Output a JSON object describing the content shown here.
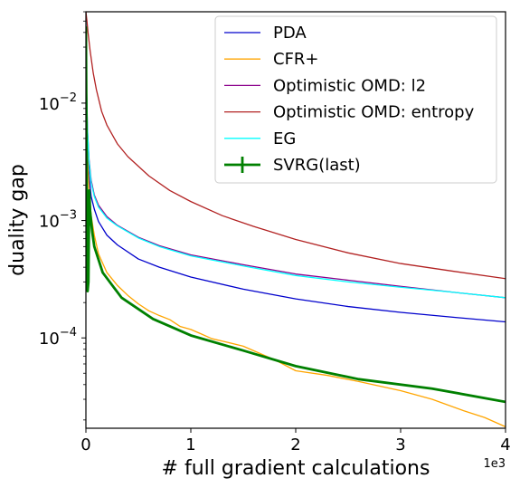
{
  "chart_data": {
    "type": "line",
    "xlabel": "# full gradient calculations",
    "ylabel": "duality gap",
    "x_offset_label": "1e3",
    "xlim": [
      0,
      4000
    ],
    "ylim": [
      1.7e-05,
      0.06
    ],
    "yscale": "log",
    "grid": false,
    "legend_position": "upper right",
    "x_ticks": [
      {
        "value": 0,
        "label": "0"
      },
      {
        "value": 1000,
        "label": "1"
      },
      {
        "value": 2000,
        "label": "2"
      },
      {
        "value": 3000,
        "label": "3"
      },
      {
        "value": 4000,
        "label": "4"
      }
    ],
    "y_ticks": [
      {
        "value": 0.0001,
        "base": "10",
        "exp": "−4"
      },
      {
        "value": 0.001,
        "base": "10",
        "exp": "−3"
      },
      {
        "value": 0.01,
        "base": "10",
        "exp": "−2"
      }
    ],
    "series": [
      {
        "name": "PDA",
        "color": "#0000cc",
        "width": 1.3,
        "x": [
          0,
          5,
          15,
          30,
          50,
          80,
          120,
          200,
          300,
          500,
          700,
          1000,
          1500,
          2000,
          2500,
          3000,
          3500,
          4000
        ],
        "y": [
          0.04,
          0.012,
          0.0045,
          0.0024,
          0.0016,
          0.00125,
          0.00098,
          0.00075,
          0.00062,
          0.00047,
          0.0004,
          0.00033,
          0.00026,
          0.000215,
          0.000185,
          0.000165,
          0.00015,
          0.000137
        ]
      },
      {
        "name": "CFR+",
        "color": "#ffa500",
        "width": 1.3,
        "x": [
          0,
          5,
          15,
          30,
          50,
          80,
          120,
          200,
          300,
          400,
          500,
          600,
          700,
          800,
          900,
          1000,
          1100,
          1200,
          1300,
          1500,
          1800,
          2000,
          2300,
          2600,
          3000,
          3300,
          3600,
          3800,
          4000
        ],
        "y": [
          0.03,
          0.009,
          0.0035,
          0.0018,
          0.0011,
          0.00075,
          0.00052,
          0.00036,
          0.00028,
          0.00023,
          0.000195,
          0.00017,
          0.000155,
          0.000143,
          0.000125,
          0.000118,
          0.000108,
          9.85e-05,
          9.4e-05,
          8.5e-05,
          6.5e-05,
          5.25e-05,
          4.8e-05,
          4.25e-05,
          3.55e-05,
          3e-05,
          2.4e-05,
          2.1e-05,
          1.75e-05
        ]
      },
      {
        "name": "Optimistic OMD: l2",
        "color": "#8b008b",
        "width": 1.3,
        "x": [
          0,
          5,
          15,
          30,
          50,
          80,
          120,
          200,
          300,
          500,
          700,
          1000,
          1500,
          2000,
          2500,
          3000,
          3500,
          4000
        ],
        "y": [
          0.05,
          0.015,
          0.006,
          0.0033,
          0.0022,
          0.00165,
          0.00135,
          0.00108,
          0.00091,
          0.00072,
          0.00061,
          0.00051,
          0.00042,
          0.00035,
          0.00031,
          0.000275,
          0.000245,
          0.00022
        ]
      },
      {
        "name": "Optimistic OMD: entropy",
        "color": "#b22222",
        "width": 1.3,
        "x": [
          0,
          10,
          20,
          40,
          70,
          100,
          150,
          200,
          300,
          400,
          500,
          600,
          800,
          1000,
          1300,
          1600,
          2000,
          2500,
          3000,
          3500,
          4000
        ],
        "y": [
          0.06,
          0.05,
          0.04,
          0.028,
          0.018,
          0.013,
          0.0085,
          0.0065,
          0.0045,
          0.0035,
          0.0029,
          0.0024,
          0.0018,
          0.00145,
          0.0011,
          0.00089,
          0.00069,
          0.00053,
          0.00043,
          0.00037,
          0.00032
        ]
      },
      {
        "name": "EG",
        "color": "#00ffff",
        "width": 1.3,
        "x": [
          0,
          5,
          15,
          30,
          50,
          80,
          120,
          200,
          300,
          500,
          700,
          1000,
          1500,
          2000,
          2500,
          3000,
          3500,
          4000
        ],
        "y": [
          0.05,
          0.015,
          0.0058,
          0.0032,
          0.0021,
          0.0016,
          0.0013,
          0.00105,
          0.0009,
          0.00071,
          0.0006,
          0.0005,
          0.00041,
          0.00034,
          0.0003,
          0.00027,
          0.000245,
          0.00022
        ]
      },
      {
        "name": "SVRG(last)",
        "color": "#008000",
        "width": 2.8,
        "x": [
          0,
          8,
          16,
          24,
          32,
          40,
          60,
          80,
          160,
          340,
          640,
          1000,
          1500,
          2000,
          2600,
          3300,
          4000
        ],
        "y": [
          0.045,
          0.002,
          0.00025,
          0.0003,
          0.0018,
          0.0012,
          0.0008,
          0.0006,
          0.00036,
          0.00022,
          0.000145,
          0.000105,
          7.8e-05,
          5.75e-05,
          4.45e-05,
          3.7e-05,
          2.85e-05
        ]
      }
    ]
  }
}
